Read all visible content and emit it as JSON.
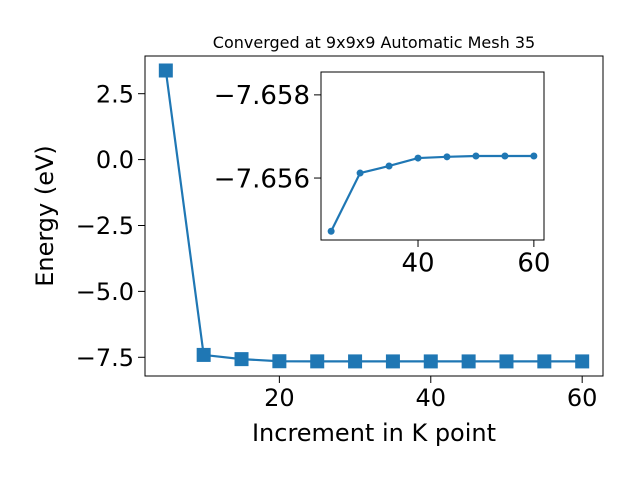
{
  "chart_data": [
    {
      "type": "line",
      "title": "Converged at 9x9x9 Automatic Mesh 35",
      "x_label": "Increment in K point",
      "y_label": "Energy (eV)",
      "x": [
        5,
        10,
        15,
        20,
        25,
        30,
        35,
        40,
        45,
        50,
        55,
        60
      ],
      "series": [
        {
          "color": "#1f77b4",
          "marker": "square",
          "values": [
            3.38,
            -7.41,
            -7.57,
            -7.65,
            -7.65472,
            -7.65612,
            -7.65629,
            -7.65648,
            -7.65651,
            -7.65653,
            -7.65653,
            -7.65653
          ]
        }
      ],
      "xlim": [
        2.25,
        62.75
      ],
      "ylim": [
        -8.21,
        3.93
      ],
      "xticks": [
        20,
        40,
        60
      ],
      "yticks": [
        {
          "value": -7.5,
          "label": "−7.5"
        },
        {
          "value": -5.0,
          "label": "−5.0"
        },
        {
          "value": -2.5,
          "label": "−2.5"
        },
        {
          "value": 0.0,
          "label": "0.0"
        },
        2.5
      ]
    },
    {
      "type": "line",
      "x": [
        25,
        30,
        35,
        40,
        45,
        50,
        55,
        60
      ],
      "series": [
        {
          "color": "#1f77b4",
          "marker": "circle",
          "values": [
            -7.65472,
            -7.65612,
            -7.65629,
            -7.65648,
            -7.65651,
            -7.65653,
            -7.65653,
            -7.65653
          ]
        }
      ],
      "xlim": [
        23.25,
        61.75
      ],
      "ylim": [
        -7.65451,
        -7.65855
      ],
      "xticks": [
        40,
        60
      ],
      "yticks": [
        {
          "value": -7.656,
          "label": "−7.656"
        },
        {
          "value": -7.658,
          "label": "−7.658"
        }
      ]
    }
  ]
}
